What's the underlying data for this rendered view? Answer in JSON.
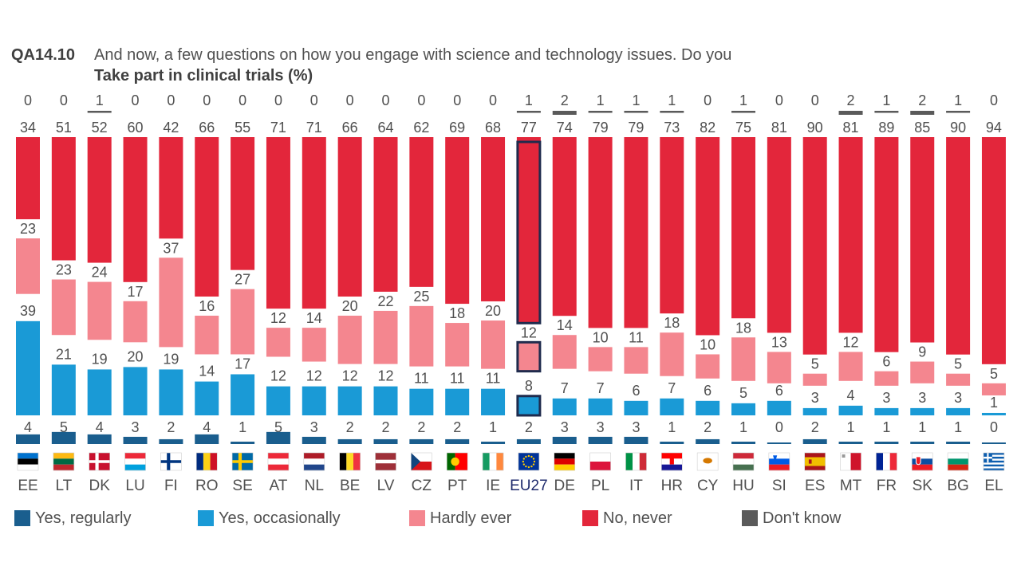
{
  "header": {
    "code": "QA14.10",
    "question": "And now, a few questions on how you engage with science and technology issues. Do you",
    "subtitle": "Take part in clinical trials (%)"
  },
  "colors": {
    "yes_regularly": "#1a5e8e",
    "yes_occasionally": "#1a9ad6",
    "hardly_ever": "#f4868f",
    "no_never": "#e3263b",
    "dont_know": "#5a5a5a",
    "eu_outline": "#1f2b4d"
  },
  "legend": [
    {
      "key": "yes_regularly",
      "label": "Yes, regularly",
      "icon": "dark-blue-square"
    },
    {
      "key": "yes_occasionally",
      "label": "Yes, occasionally",
      "icon": "light-blue-square"
    },
    {
      "key": "hardly_ever",
      "label": "Hardly ever",
      "icon": "pink-square"
    },
    {
      "key": "no_never",
      "label": "No, never",
      "icon": "red-square"
    },
    {
      "key": "dont_know",
      "label": "Don't know",
      "icon": "grey-square"
    }
  ],
  "chart_data": {
    "type": "bar",
    "subtype": "grouped-columns-per-country",
    "title": "QA14.10 And now, a few questions on how you engage with science and technology issues. Do you",
    "subtitle": "Take part in clinical trials (%)",
    "unit": "%",
    "highlight": "EU27",
    "categories": [
      "EE",
      "LT",
      "DK",
      "LU",
      "FI",
      "RO",
      "SE",
      "AT",
      "NL",
      "BE",
      "LV",
      "CZ",
      "PT",
      "IE",
      "EU27",
      "DE",
      "PL",
      "IT",
      "HR",
      "CY",
      "HU",
      "SI",
      "ES",
      "MT",
      "FR",
      "SK",
      "BG",
      "EL"
    ],
    "series": [
      {
        "name": "Yes, regularly",
        "key": "yes_regularly",
        "values": [
          4,
          5,
          4,
          3,
          2,
          4,
          1,
          5,
          3,
          2,
          2,
          2,
          2,
          1,
          2,
          3,
          3,
          3,
          1,
          2,
          1,
          0,
          2,
          1,
          1,
          1,
          1,
          0
        ]
      },
      {
        "name": "Yes, occasionally",
        "key": "yes_occasionally",
        "values": [
          39,
          21,
          19,
          20,
          19,
          14,
          17,
          12,
          12,
          12,
          12,
          11,
          11,
          11,
          8,
          7,
          7,
          6,
          7,
          6,
          5,
          6,
          3,
          4,
          3,
          3,
          3,
          1
        ]
      },
      {
        "name": "Hardly ever",
        "key": "hardly_ever",
        "values": [
          23,
          23,
          24,
          17,
          37,
          16,
          27,
          12,
          14,
          20,
          22,
          25,
          18,
          20,
          12,
          14,
          10,
          11,
          18,
          10,
          18,
          13,
          5,
          12,
          6,
          9,
          5,
          5
        ]
      },
      {
        "name": "No, never",
        "key": "no_never",
        "values": [
          34,
          51,
          52,
          60,
          42,
          66,
          55,
          71,
          71,
          66,
          64,
          62,
          69,
          68,
          77,
          74,
          79,
          79,
          73,
          82,
          75,
          81,
          90,
          81,
          89,
          85,
          90,
          94
        ]
      },
      {
        "name": "Don't know",
        "key": "dont_know",
        "values": [
          0,
          0,
          1,
          0,
          0,
          0,
          0,
          0,
          0,
          0,
          0,
          0,
          0,
          0,
          1,
          2,
          1,
          1,
          1,
          0,
          1,
          0,
          0,
          2,
          1,
          2,
          1,
          0
        ]
      }
    ],
    "flags": [
      "ee-flag",
      "lt-flag",
      "dk-flag",
      "lu-flag",
      "fi-flag",
      "ro-flag",
      "se-flag",
      "at-flag",
      "nl-flag",
      "be-flag",
      "lv-flag",
      "cz-flag",
      "pt-flag",
      "ie-flag",
      "eu-flag",
      "de-flag",
      "pl-flag",
      "it-flag",
      "hr-flag",
      "cy-flag",
      "hu-flag",
      "si-flag",
      "es-flag",
      "mt-flag",
      "fr-flag",
      "sk-flag",
      "bg-flag",
      "gr-flag"
    ]
  }
}
